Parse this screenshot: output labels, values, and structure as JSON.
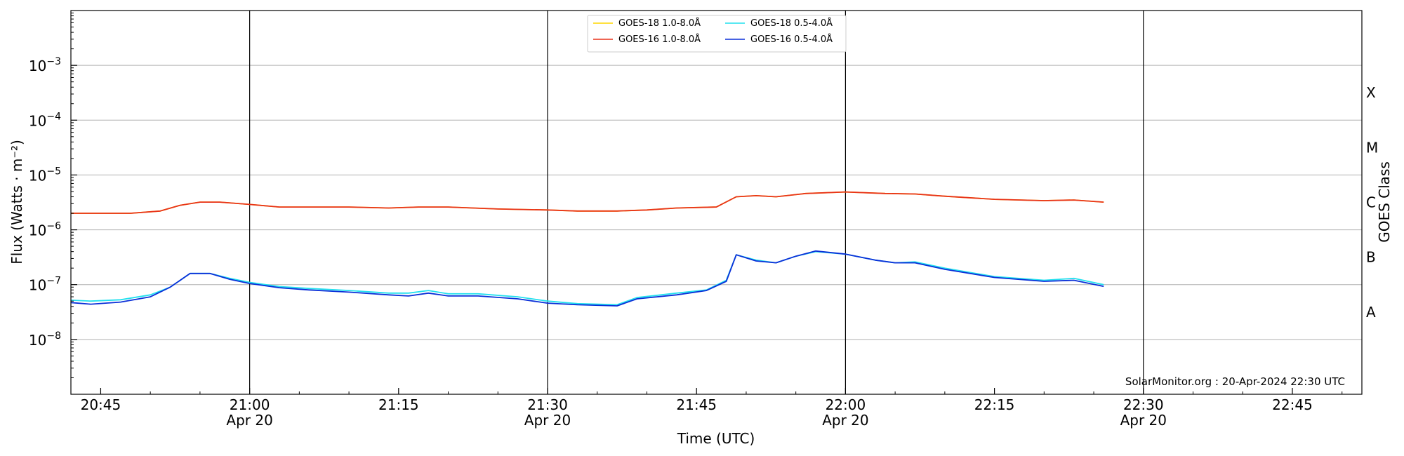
{
  "chart_data": {
    "type": "line",
    "xlabel": "Time (UTC)",
    "ylabel": "Flux (Watts · m⁻²)",
    "y2label": "GOES Class",
    "yscale": "log",
    "ylim": [
      1e-09,
      0.01
    ],
    "xlim": [
      "20:42",
      "22:52"
    ],
    "grid": "horizontal",
    "legend_placement": "top-center",
    "x_ticks": [
      {
        "t": "20:45",
        "label": "20:45",
        "sub": ""
      },
      {
        "t": "21:00",
        "label": "21:00",
        "sub": "Apr 20"
      },
      {
        "t": "21:15",
        "label": "21:15",
        "sub": ""
      },
      {
        "t": "21:30",
        "label": "21:30",
        "sub": "Apr 20"
      },
      {
        "t": "21:45",
        "label": "21:45",
        "sub": ""
      },
      {
        "t": "22:00",
        "label": "22:00",
        "sub": "Apr 20"
      },
      {
        "t": "22:15",
        "label": "22:15",
        "sub": ""
      },
      {
        "t": "22:30",
        "label": "22:30",
        "sub": "Apr 20"
      },
      {
        "t": "22:45",
        "label": "22:45",
        "sub": ""
      }
    ],
    "day_lines": [
      "21:00",
      "21:30",
      "22:00",
      "22:30"
    ],
    "y_ticks": [
      {
        "v": 1e-08,
        "base": "10",
        "exp": "−8"
      },
      {
        "v": 1e-07,
        "base": "10",
        "exp": "−7"
      },
      {
        "v": 1e-06,
        "base": "10",
        "exp": "−6"
      },
      {
        "v": 1e-05,
        "base": "10",
        "exp": "−5"
      },
      {
        "v": 0.0001,
        "base": "10",
        "exp": "−4"
      },
      {
        "v": 0.001,
        "base": "10",
        "exp": "−3"
      }
    ],
    "classes": [
      {
        "label": "A",
        "v": 3.16e-08
      },
      {
        "label": "B",
        "v": 3.16e-07
      },
      {
        "label": "C",
        "v": 3.16e-06
      },
      {
        "label": "M",
        "v": 3.16e-05
      },
      {
        "label": "X",
        "v": 0.000316
      }
    ],
    "credit": "SolarMonitor.org : 20-Apr-2024 22:30 UTC",
    "series": [
      {
        "name": "GOES-18 1.0-8.0Å",
        "color": "#ffd700",
        "points": [
          [
            "20:42",
            2e-06
          ],
          [
            "20:45",
            2e-06
          ],
          [
            "20:48",
            2e-06
          ],
          [
            "20:51",
            2.2e-06
          ],
          [
            "20:53",
            2.8e-06
          ],
          [
            "20:55",
            3.2e-06
          ],
          [
            "20:57",
            3.2e-06
          ],
          [
            "21:00",
            2.9e-06
          ],
          [
            "21:03",
            2.6e-06
          ],
          [
            "21:06",
            2.6e-06
          ],
          [
            "21:10",
            2.6e-06
          ],
          [
            "21:14",
            2.5e-06
          ],
          [
            "21:17",
            2.6e-06
          ],
          [
            "21:20",
            2.6e-06
          ],
          [
            "21:25",
            2.4e-06
          ],
          [
            "21:30",
            2.3e-06
          ],
          [
            "21:33",
            2.2e-06
          ],
          [
            "21:37",
            2.2e-06
          ],
          [
            "21:40",
            2.3e-06
          ],
          [
            "21:43",
            2.5e-06
          ],
          [
            "21:47",
            2.6e-06
          ],
          [
            "21:49",
            4e-06
          ],
          [
            "21:51",
            4.2e-06
          ],
          [
            "21:53",
            4e-06
          ],
          [
            "21:56",
            4.6e-06
          ],
          [
            "22:00",
            4.9e-06
          ],
          [
            "22:04",
            4.6e-06
          ],
          [
            "22:07",
            4.5e-06
          ],
          [
            "22:10",
            4.1e-06
          ],
          [
            "22:15",
            3.6e-06
          ],
          [
            "22:20",
            3.4e-06
          ],
          [
            "22:23",
            3.5e-06
          ],
          [
            "22:26",
            3.2e-06
          ]
        ]
      },
      {
        "name": "GOES-16 1.0-8.0Å",
        "color": "#e8321a",
        "points": [
          [
            "20:42",
            2e-06
          ],
          [
            "20:45",
            2e-06
          ],
          [
            "20:48",
            2e-06
          ],
          [
            "20:51",
            2.2e-06
          ],
          [
            "20:53",
            2.8e-06
          ],
          [
            "20:55",
            3.2e-06
          ],
          [
            "20:57",
            3.2e-06
          ],
          [
            "21:00",
            2.9e-06
          ],
          [
            "21:03",
            2.6e-06
          ],
          [
            "21:06",
            2.6e-06
          ],
          [
            "21:10",
            2.6e-06
          ],
          [
            "21:14",
            2.5e-06
          ],
          [
            "21:17",
            2.6e-06
          ],
          [
            "21:20",
            2.6e-06
          ],
          [
            "21:25",
            2.4e-06
          ],
          [
            "21:30",
            2.3e-06
          ],
          [
            "21:33",
            2.2e-06
          ],
          [
            "21:37",
            2.2e-06
          ],
          [
            "21:40",
            2.3e-06
          ],
          [
            "21:43",
            2.5e-06
          ],
          [
            "21:47",
            2.6e-06
          ],
          [
            "21:49",
            4e-06
          ],
          [
            "21:51",
            4.2e-06
          ],
          [
            "21:53",
            4e-06
          ],
          [
            "21:56",
            4.6e-06
          ],
          [
            "22:00",
            4.9e-06
          ],
          [
            "22:04",
            4.6e-06
          ],
          [
            "22:07",
            4.5e-06
          ],
          [
            "22:10",
            4.1e-06
          ],
          [
            "22:15",
            3.6e-06
          ],
          [
            "22:20",
            3.4e-06
          ],
          [
            "22:23",
            3.5e-06
          ],
          [
            "22:26",
            3.2e-06
          ]
        ]
      },
      {
        "name": "GOES-18 0.5-4.0Å",
        "color": "#22e0ee",
        "points": [
          [
            "20:42",
            5.2e-08
          ],
          [
            "20:44",
            5e-08
          ],
          [
            "20:47",
            5.3e-08
          ],
          [
            "20:50",
            6.5e-08
          ],
          [
            "20:52",
            9e-08
          ],
          [
            "20:54",
            1.6e-07
          ],
          [
            "20:56",
            1.6e-07
          ],
          [
            "20:58",
            1.3e-07
          ],
          [
            "21:00",
            1.1e-07
          ],
          [
            "21:03",
            9.2e-08
          ],
          [
            "21:06",
            8.5e-08
          ],
          [
            "21:10",
            7.8e-08
          ],
          [
            "21:14",
            7e-08
          ],
          [
            "21:16",
            7e-08
          ],
          [
            "21:18",
            7.8e-08
          ],
          [
            "21:20",
            6.8e-08
          ],
          [
            "21:23",
            6.8e-08
          ],
          [
            "21:27",
            6e-08
          ],
          [
            "21:30",
            5e-08
          ],
          [
            "21:33",
            4.5e-08
          ],
          [
            "21:37",
            4.3e-08
          ],
          [
            "21:39",
            5.8e-08
          ],
          [
            "21:43",
            7e-08
          ],
          [
            "21:46",
            8e-08
          ],
          [
            "21:48",
            1.2e-07
          ],
          [
            "21:49",
            3.5e-07
          ],
          [
            "21:51",
            2.8e-07
          ],
          [
            "21:53",
            2.5e-07
          ],
          [
            "21:55",
            3.3e-07
          ],
          [
            "21:57",
            4e-07
          ],
          [
            "22:00",
            3.6e-07
          ],
          [
            "22:03",
            2.8e-07
          ],
          [
            "22:05",
            2.5e-07
          ],
          [
            "22:07",
            2.6e-07
          ],
          [
            "22:10",
            2e-07
          ],
          [
            "22:15",
            1.4e-07
          ],
          [
            "22:20",
            1.2e-07
          ],
          [
            "22:23",
            1.3e-07
          ],
          [
            "22:26",
            1e-07
          ]
        ]
      },
      {
        "name": "GOES-16 0.5-4.0Å",
        "color": "#0a2fd8",
        "points": [
          [
            "20:42",
            4.7e-08
          ],
          [
            "20:44",
            4.4e-08
          ],
          [
            "20:47",
            4.8e-08
          ],
          [
            "20:50",
            6e-08
          ],
          [
            "20:52",
            9e-08
          ],
          [
            "20:54",
            1.6e-07
          ],
          [
            "20:56",
            1.6e-07
          ],
          [
            "20:58",
            1.25e-07
          ],
          [
            "21:00",
            1.05e-07
          ],
          [
            "21:03",
            8.8e-08
          ],
          [
            "21:06",
            8e-08
          ],
          [
            "21:10",
            7.3e-08
          ],
          [
            "21:14",
            6.5e-08
          ],
          [
            "21:16",
            6.2e-08
          ],
          [
            "21:18",
            7e-08
          ],
          [
            "21:20",
            6.2e-08
          ],
          [
            "21:23",
            6.2e-08
          ],
          [
            "21:27",
            5.5e-08
          ],
          [
            "21:30",
            4.6e-08
          ],
          [
            "21:33",
            4.3e-08
          ],
          [
            "21:37",
            4.1e-08
          ],
          [
            "21:39",
            5.5e-08
          ],
          [
            "21:43",
            6.5e-08
          ],
          [
            "21:46",
            7.8e-08
          ],
          [
            "21:48",
            1.15e-07
          ],
          [
            "21:49",
            3.5e-07
          ],
          [
            "21:51",
            2.7e-07
          ],
          [
            "21:53",
            2.5e-07
          ],
          [
            "21:55",
            3.3e-07
          ],
          [
            "21:57",
            4.1e-07
          ],
          [
            "22:00",
            3.6e-07
          ],
          [
            "22:03",
            2.8e-07
          ],
          [
            "22:05",
            2.5e-07
          ],
          [
            "22:07",
            2.5e-07
          ],
          [
            "22:10",
            1.9e-07
          ],
          [
            "22:15",
            1.35e-07
          ],
          [
            "22:20",
            1.15e-07
          ],
          [
            "22:23",
            1.2e-07
          ],
          [
            "22:26",
            9.3e-08
          ]
        ]
      }
    ]
  }
}
